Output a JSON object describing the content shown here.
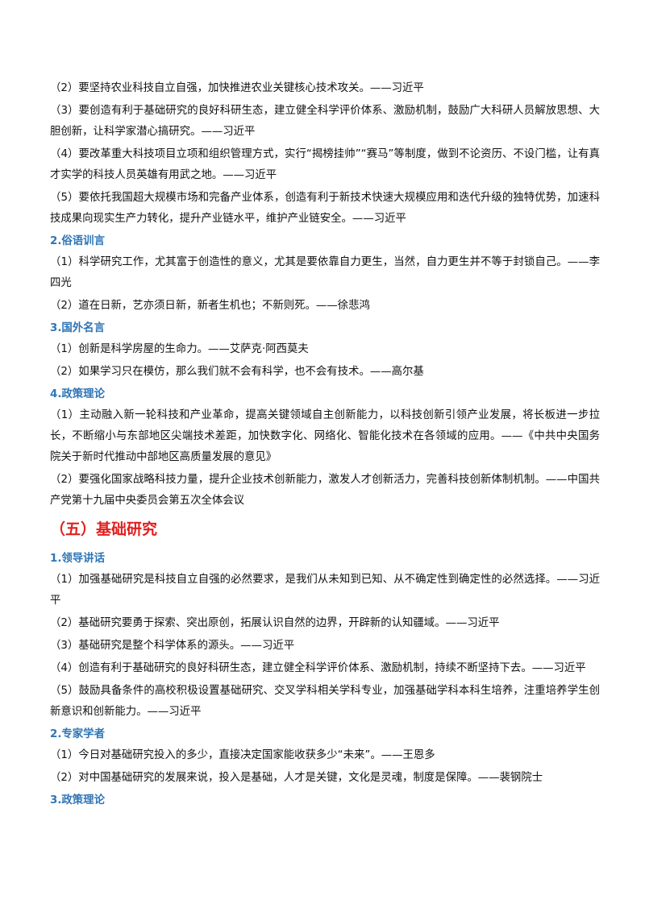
{
  "continued_items": [
    "（2）要坚持农业科技自立自强，加快推进农业关键核心技术攻关。——习近平",
    "（3）要创造有利于基础研究的良好科研生态，建立健全科学评价体系、激励机制，鼓励广大科研人员解放思想、大胆创新，让科学家潜心搞研究。——习近平",
    "（4）要改革重大科技项目立项和组织管理方式，实行“揭榜挂帅”“赛马”等制度，做到不论资历、不设门槛，让有真才实学的科技人员英雄有用武之地。——习近平",
    "（5）要依托我国超大规模市场和完备产业体系，创造有利于新技术快速大规模应用和迭代升级的独特优势，加速科技成果向现实生产力转化，提升产业链水平，维护产业链安全。——习近平"
  ],
  "sections": [
    {
      "title": "2.俗语训言",
      "items": [
        "（1）科学研究工作，尤其富于创造性的意义，尤其是要依靠自力更生，当然，自力更生并不等于封锁自己。——李四光",
        "（2）道在日新，艺亦须日新，新者生机也；不新则死。——徐悲鸿"
      ]
    },
    {
      "title": "3.国外名言",
      "items": [
        "（1）创新是科学房屋的生命力。——艾萨克·阿西莫夫",
        "（2）如果学习只在模仿，那么我们就不会有科学，也不会有技术。——高尔基"
      ]
    },
    {
      "title": "4.政策理论",
      "items": [
        "（1）主动融入新一轮科技和产业革命，提高关键领域自主创新能力，以科技创新引领产业发展，将长板进一步拉长，不断缩小与东部地区尖端技术差距，加快数字化、网络化、智能化技术在各领域的应用。——《中共中央国务院关于新时代推动中部地区高质量发展的意见》",
        "（2）要强化国家战略科技力量，提升企业技术创新能力，激发人才创新活力，完善科技创新体制机制。——中国共产党第十九届中央委员会第五次全体会议"
      ]
    }
  ],
  "chapter": {
    "title": "（五）基础研究",
    "sections": [
      {
        "title": "1.领导讲话",
        "items": [
          "（1）加强基础研究是科技自立自强的必然要求，是我们从未知到已知、从不确定性到确定性的必然选择。——习近平",
          "（2）基础研究要勇于探索、突出原创，拓展认识自然的边界，开辟新的认知疆域。——习近平",
          "（3）基础研究是整个科学体系的源头。——习近平",
          "（4）创造有利于基础研究的良好科研生态，建立健全科学评价体系、激励机制，持续不断坚持下去。——习近平",
          "（5）鼓励具备条件的高校积极设置基础研究、交叉学科相关学科专业，加强基础学科本科生培养，注重培养学生创新意识和创新能力。——习近平"
        ]
      },
      {
        "title": "2.专家学者",
        "items": [
          "（1）今日对基础研究投入的多少，直接决定国家能收获多少“未来”。——王恩多",
          "（2）对中国基础研究的发展来说，投入是基础，人才是关键，文化是灵魂，制度是保障。——裴钢院士"
        ]
      },
      {
        "title": "3.政策理论",
        "items": []
      }
    ]
  }
}
